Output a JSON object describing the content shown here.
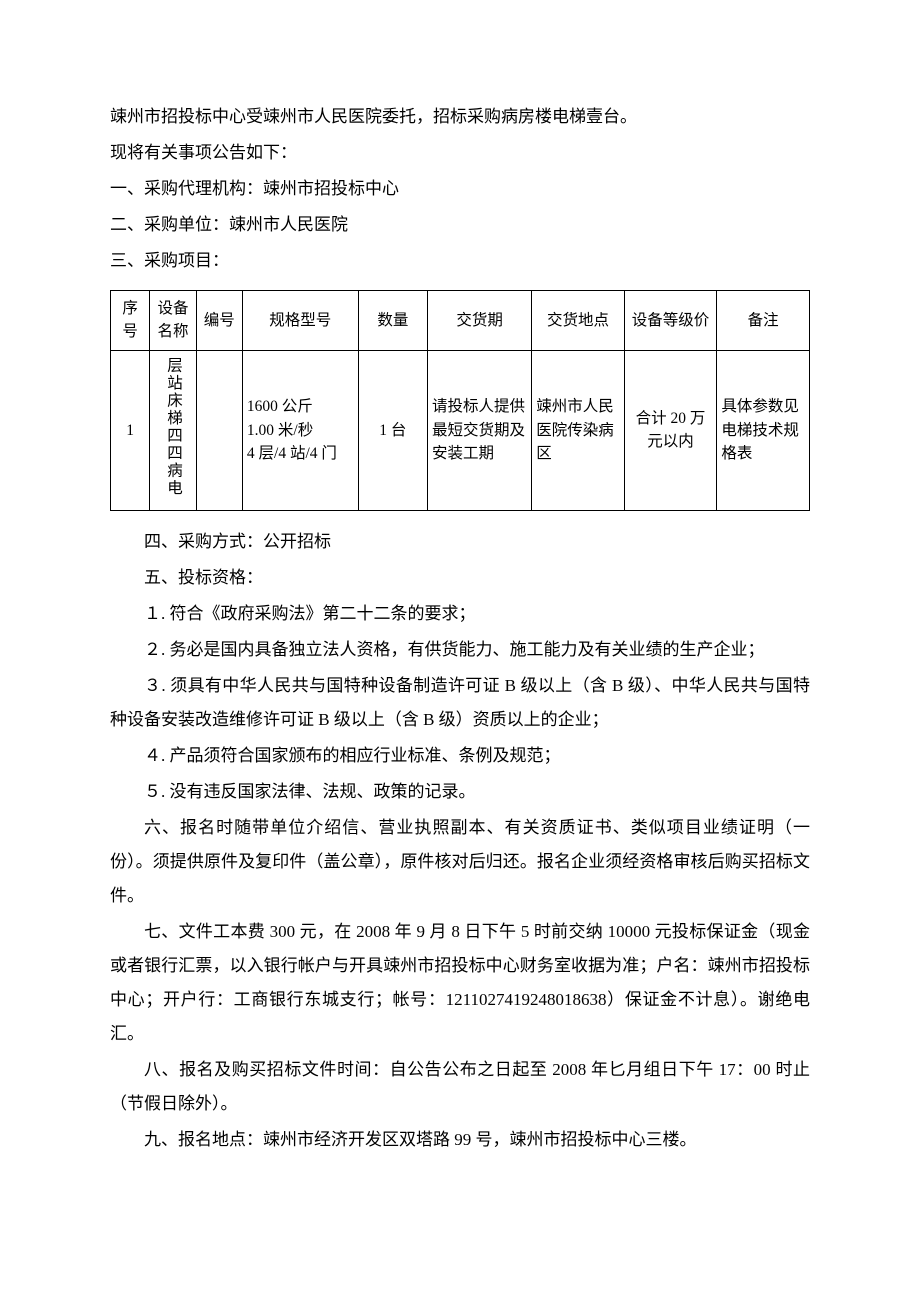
{
  "colors": {
    "background": "#ffffff",
    "text": "#000000",
    "border": "#000000"
  },
  "typography": {
    "font_family": "SimSun",
    "body_fontsize": 17,
    "table_fontsize": 15.5,
    "line_height": 2.0
  },
  "intro": {
    "line1": "竦州市招投标中心受竦州市人民医院委托，招标采购病房楼电梯壹台。",
    "line2": "现将有关事项公告如下：",
    "item1": "一、采购代理机构：竦州市招投标中心",
    "item2": "二、采购单位：竦州市人民医院",
    "item3": "三、采购项目："
  },
  "table": {
    "headers": {
      "seq": "序号",
      "name": "设备名称",
      "num": "编号",
      "spec": "规格型号",
      "qty": "数量",
      "delivery": "交货期",
      "location": "交货地点",
      "price": "设备等级价",
      "remark": "备注"
    },
    "row1": {
      "seq": "1",
      "name": "层站床梯四四病电",
      "num": "",
      "spec_line1": "1600 公斤",
      "spec_line2": "1.00 米/秒",
      "spec_line3": "4 层/4 站/4 门",
      "qty": "1 台",
      "delivery": "请投标人提供最短交货期及安装工期",
      "location": "竦州市人民医院传染病区",
      "price": "合计 20 万元以内",
      "remark": "具体参数见电梯技术规格表"
    }
  },
  "body": {
    "p4": "四、采购方式：公开招标",
    "p5": "五、投标资格：",
    "p5_1": "１. 符合《政府采购法》第二十二条的要求；",
    "p5_2": "２. 务必是国内具备独立法人资格，有供货能力、施工能力及有关业绩的生产企业；",
    "p5_3": "３. 须具有中华人民共与国特种设备制造许可证 B 级以上（含 B 级）、中华人民共与国特种设备安装改造维修许可证 B 级以上（含 B 级）资质以上的企业；",
    "p5_4": "４. 产品须符合国家颁布的相应行业标准、条例及规范；",
    "p5_5": "５. 没有违反国家法律、法规、政策的记录。",
    "p6": "六、报名时随带单位介绍信、营业执照副本、有关资质证书、类似项目业绩证明（一份）。须提供原件及复印件（盖公章），原件核对后归还。报名企业须经资格审核后购买招标文件。",
    "p7": "七、文件工本费 300 元，在 2008 年 9 月 8 日下午 5 时前交纳 10000 元投标保证金（现金或者银行汇票，以入银行帐户与开具竦州市招投标中心财务室收据为准；户名：竦州市招投标中心；开户行：工商银行东城支行；帐号：1211027419248018638）保证金不计息）。谢绝电汇。",
    "p8": "八、报名及购买招标文件时间：自公告公布之日起至 2008 年匕月组日下午 17：00 时止（节假日除外）。",
    "p9": "九、报名地点：竦州市经济开发区双塔路 99 号，竦州市招投标中心三楼。"
  }
}
